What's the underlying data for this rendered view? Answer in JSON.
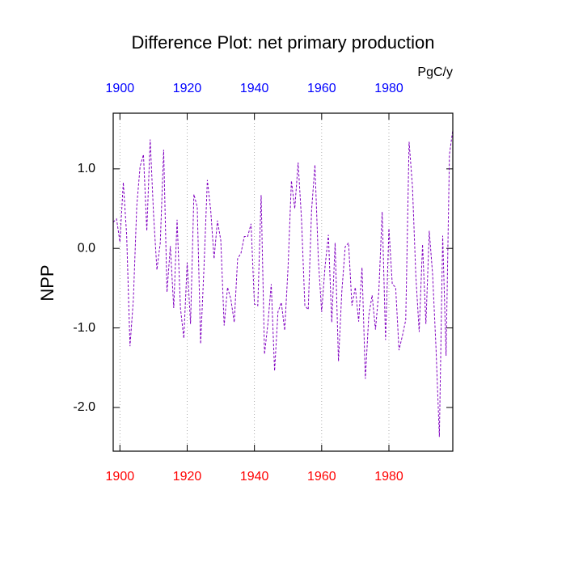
{
  "chart_data": {
    "type": "line",
    "title": "Difference Plot: net primary production",
    "units": "PgC/y",
    "ylabel": "NPP",
    "x": [
      1898,
      1899,
      1900,
      1901,
      1902,
      1903,
      1904,
      1905,
      1906,
      1907,
      1908,
      1909,
      1910,
      1911,
      1912,
      1913,
      1914,
      1915,
      1916,
      1917,
      1918,
      1919,
      1920,
      1921,
      1922,
      1923,
      1924,
      1925,
      1926,
      1927,
      1928,
      1929,
      1930,
      1931,
      1932,
      1933,
      1934,
      1935,
      1936,
      1937,
      1938,
      1939,
      1940,
      1941,
      1942,
      1943,
      1944,
      1945,
      1946,
      1947,
      1948,
      1949,
      1950,
      1951,
      1952,
      1953,
      1954,
      1955,
      1956,
      1957,
      1958,
      1959,
      1960,
      1961,
      1962,
      1963,
      1964,
      1965,
      1966,
      1967,
      1968,
      1969,
      1970,
      1971,
      1972,
      1973,
      1974,
      1975,
      1976,
      1977,
      1978,
      1979,
      1980,
      1981,
      1982,
      1983,
      1984,
      1985,
      1986,
      1987,
      1988,
      1989,
      1990,
      1991,
      1992,
      1993,
      1994,
      1995,
      1996,
      1997,
      1998,
      1999
    ],
    "series": [
      {
        "color": "#8000c0",
        "dashed": true,
        "values": [
          0.33,
          0.37,
          0.08,
          0.83,
          0.17,
          -1.23,
          -0.64,
          0.53,
          1.03,
          1.18,
          0.22,
          1.37,
          0.43,
          -0.27,
          0.07,
          1.24,
          -0.55,
          0.03,
          -0.75,
          0.36,
          -0.75,
          -1.13,
          -0.18,
          -0.95,
          0.68,
          0.52,
          -1.2,
          -0.24,
          0.86,
          0.48,
          -0.13,
          0.35,
          0.1,
          -0.97,
          -0.49,
          -0.64,
          -0.93,
          -0.13,
          -0.06,
          0.15,
          0.15,
          0.31,
          -0.7,
          -0.72,
          0.67,
          -1.33,
          -0.95,
          -0.45,
          -1.54,
          -0.8,
          -0.68,
          -1.03,
          -0.24,
          0.85,
          0.5,
          1.08,
          0.37,
          -0.72,
          -0.77,
          0.48,
          1.05,
          -0.13,
          -0.8,
          -0.23,
          0.17,
          -0.93,
          0.07,
          -1.42,
          -0.54,
          0.02,
          0.07,
          -0.72,
          -0.49,
          -0.92,
          -0.24,
          -1.64,
          -0.85,
          -0.59,
          -1.02,
          -0.54,
          0.46,
          -1.15,
          0.25,
          -0.45,
          -0.49,
          -1.28,
          -1.1,
          -0.9,
          1.34,
          0.78,
          -0.34,
          -1.05,
          0.05,
          -0.95,
          0.22,
          -0.33,
          -1.25,
          -2.37,
          0.16,
          -1.35,
          1.18,
          1.49
        ]
      }
    ],
    "xlim": [
      1898,
      1999
    ],
    "xticks": [
      1900,
      1920,
      1940,
      1960,
      1980
    ],
    "ylim": [
      -2.55,
      1.7
    ],
    "yticks": [
      {
        "value": -2,
        "label": "-2.0"
      },
      {
        "value": -1,
        "label": "-1.0"
      },
      {
        "value": 0,
        "label": "0.0"
      },
      {
        "value": 1,
        "label": "1.0"
      }
    ],
    "grid": "x",
    "top_axis_color": "#0000ff",
    "bottom_axis_color": "#ff0000"
  }
}
